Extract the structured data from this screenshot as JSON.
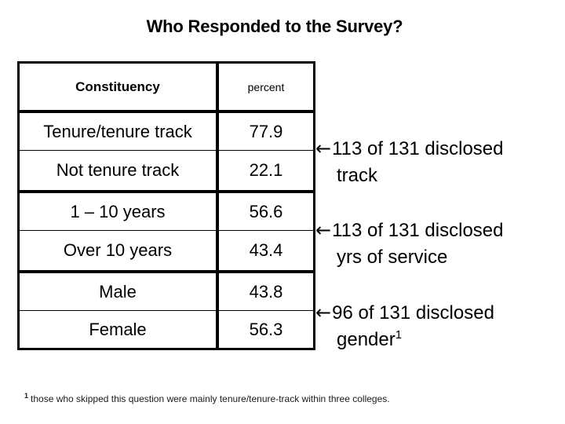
{
  "title": "Who Responded to the Survey?",
  "table": {
    "headers": {
      "constituency": "Constituency",
      "percent": "percent"
    },
    "rows": [
      {
        "label": "Tenure/tenure track",
        "value": "77.9"
      },
      {
        "label": "Not tenure track",
        "value": "22.1"
      },
      {
        "label": "1 – 10 years",
        "value": "56.6"
      },
      {
        "label": "Over 10 years",
        "value": "43.4"
      },
      {
        "label": "Male",
        "value": "43.8"
      },
      {
        "label": "Female",
        "value": "56.3"
      }
    ]
  },
  "annotations": [
    {
      "arrow": "←",
      "line1": "113 of 131 disclosed",
      "line2": "track"
    },
    {
      "arrow": "←",
      "line1": "113 of 131 disclosed",
      "line2": "yrs of service"
    },
    {
      "arrow": "←",
      "line1": "96 of 131 disclosed",
      "line2": "gender",
      "line2_sup": "1"
    }
  ],
  "footnote": {
    "sup": "1",
    "text": "those who skipped this question were mainly tenure/tenure-track within three colleges."
  },
  "colors": {
    "background": "#ffffff",
    "text": "#000000",
    "border": "#000000"
  }
}
